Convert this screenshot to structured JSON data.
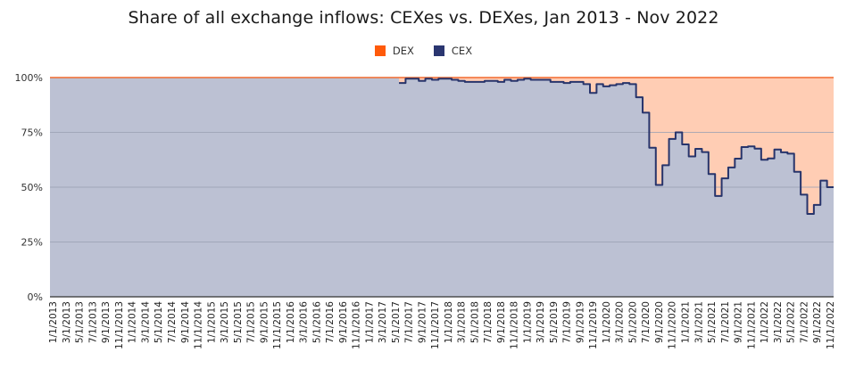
{
  "title": "Share of all exchange inflows: CEXes vs. DEXes, Jan 2013 - Nov 2022",
  "legend": [
    {
      "label": "DEX",
      "color": "#ff5a0a"
    },
    {
      "label": "CEX",
      "color": "#2a3670"
    }
  ],
  "colors": {
    "dex_fill": "#ffcdb4",
    "dex_line": "#f26a2e",
    "cex_fill": "#bcc1d3",
    "cex_line": "#27346b",
    "grid": "#9aa0b3",
    "axis": "#333333"
  },
  "chart_data": {
    "type": "area",
    "title": "Share of all exchange inflows: CEXes vs. DEXes, Jan 2013 - Nov 2022",
    "xlabel": "",
    "ylabel": "",
    "ylim": [
      0,
      100
    ],
    "yticks": [
      "0%",
      "25%",
      "50%",
      "75%",
      "100%"
    ],
    "grid": true,
    "stacked": true,
    "step": true,
    "legend_position": "top",
    "x_start": "1/1/2013",
    "x_end": "11/1/2022",
    "x_frequency": "monthly",
    "xtick_labels": [
      "1/1/2013",
      "3/1/2013",
      "5/1/2013",
      "7/1/2013",
      "9/1/2013",
      "11/1/2013",
      "1/1/2014",
      "3/1/2014",
      "5/1/2014",
      "7/1/2014",
      "9/1/2014",
      "11/1/2014",
      "1/1/2015",
      "3/1/2015",
      "5/1/2015",
      "7/1/2015",
      "9/1/2015",
      "11/1/2015",
      "1/1/2016",
      "3/1/2016",
      "5/1/2016",
      "7/1/2016",
      "9/1/2016",
      "11/1/2016",
      "1/1/2017",
      "3/1/2017",
      "5/1/2017",
      "7/1/2017",
      "9/1/2017",
      "11/1/2017",
      "1/1/2018",
      "3/1/2018",
      "5/1/2018",
      "7/1/2018",
      "9/1/2018",
      "11/1/2018",
      "1/1/2019",
      "3/1/2019",
      "5/1/2019",
      "7/1/2019",
      "9/1/2019",
      "11/1/2019",
      "1/1/2020",
      "3/1/2020",
      "5/1/2020",
      "7/1/2020",
      "9/1/2020",
      "11/1/2020",
      "1/1/2021",
      "3/1/2021",
      "5/1/2021",
      "7/1/2021",
      "9/1/2021",
      "11/1/2021",
      "1/1/2022",
      "3/1/2022",
      "5/1/2022",
      "7/1/2022",
      "9/1/2022",
      "11/1/2022"
    ],
    "series": [
      {
        "name": "CEX",
        "values": [
          100,
          100,
          100,
          100,
          100,
          100,
          100,
          100,
          100,
          100,
          100,
          100,
          100,
          100,
          100,
          100,
          100,
          100,
          100,
          100,
          100,
          100,
          100,
          100,
          100,
          100,
          100,
          100,
          100,
          100,
          100,
          100,
          100,
          100,
          100,
          100,
          100,
          100,
          100,
          100,
          100,
          100,
          100,
          100,
          100,
          100,
          100,
          100,
          100,
          100,
          100,
          100,
          100,
          97.5,
          99.5,
          99.5,
          98.5,
          99.5,
          99,
          99.5,
          99.5,
          99,
          98.5,
          98,
          98,
          98,
          98.5,
          98.5,
          98,
          99,
          98.5,
          99,
          99.5,
          99,
          99,
          99,
          98,
          98,
          97.5,
          98,
          98,
          97,
          93,
          97,
          96,
          96.5,
          97,
          97.5,
          97,
          91,
          84,
          68,
          51,
          60,
          72,
          75,
          69.5,
          64,
          67.5,
          66,
          56,
          46,
          54,
          59,
          63,
          68.3,
          68.6,
          67.6,
          62.5,
          63.1,
          67.2,
          65.9,
          65.3,
          57,
          46.6,
          37.8,
          41.9,
          53,
          50
        ]
      },
      {
        "name": "DEX",
        "values_note": "100 - CEX",
        "values": []
      }
    ]
  }
}
